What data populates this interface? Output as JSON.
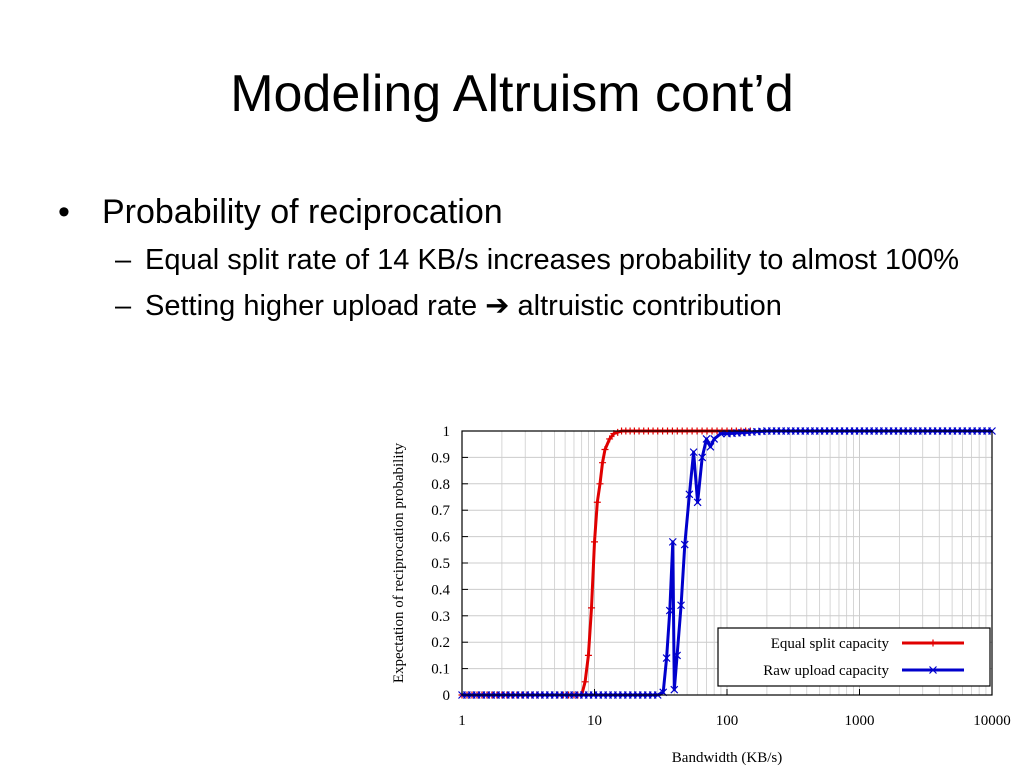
{
  "slide": {
    "title": "Modeling Altruism cont’d",
    "bullets": [
      {
        "text": "Probability of reciprocation",
        "subitems": [
          "Equal split rate of 14 KB/s increases probability to almost 100%",
          "Setting higher upload rate ➔ altruistic contribution"
        ]
      }
    ],
    "bullet_glyph": "•",
    "dash_glyph": "–"
  },
  "chart_data": {
    "type": "line",
    "title": "",
    "xlabel": "Bandwidth (KB/s)",
    "ylabel": "Expectation of reciprocation probability",
    "xscale": "log",
    "xlim": [
      1,
      10000
    ],
    "ylim": [
      0,
      1
    ],
    "x_ticks": [
      "1",
      "10",
      "100",
      "1000",
      "10000"
    ],
    "y_ticks": [
      "0",
      "0.1",
      "0.2",
      "0.3",
      "0.4",
      "0.5",
      "0.6",
      "0.7",
      "0.8",
      "0.9",
      "1"
    ],
    "grid": true,
    "legend_position": "bottom-right",
    "series": [
      {
        "name": "Equal split capacity",
        "color": "#e00000",
        "marker": "plus",
        "points": [
          [
            1,
            0
          ],
          [
            2,
            0
          ],
          [
            4,
            0
          ],
          [
            7,
            0
          ],
          [
            8,
            0
          ],
          [
            8.5,
            0.05
          ],
          [
            9,
            0.15
          ],
          [
            9.5,
            0.33
          ],
          [
            10,
            0.58
          ],
          [
            10.5,
            0.73
          ],
          [
            11,
            0.8
          ],
          [
            11.5,
            0.88
          ],
          [
            12,
            0.93
          ],
          [
            13,
            0.97
          ],
          [
            14,
            0.99
          ],
          [
            16,
            1
          ],
          [
            20,
            1
          ],
          [
            30,
            1
          ],
          [
            50,
            1
          ],
          [
            100,
            1
          ],
          [
            150,
            1
          ]
        ]
      },
      {
        "name": "Raw upload capacity",
        "color": "#0000cc",
        "marker": "x",
        "points": [
          [
            1,
            0
          ],
          [
            5,
            0
          ],
          [
            15,
            0
          ],
          [
            30,
            0
          ],
          [
            33,
            0.01
          ],
          [
            35,
            0.14
          ],
          [
            37,
            0.32
          ],
          [
            39,
            0.58
          ],
          [
            40,
            0.02
          ],
          [
            42,
            0.15
          ],
          [
            45,
            0.34
          ],
          [
            48,
            0.57
          ],
          [
            52,
            0.76
          ],
          [
            56,
            0.92
          ],
          [
            60,
            0.73
          ],
          [
            65,
            0.9
          ],
          [
            70,
            0.97
          ],
          [
            75,
            0.94
          ],
          [
            80,
            0.97
          ],
          [
            90,
            0.99
          ],
          [
            100,
            0.99
          ],
          [
            200,
            1
          ],
          [
            500,
            1
          ],
          [
            1000,
            1
          ],
          [
            3000,
            1
          ],
          [
            10000,
            1
          ]
        ]
      }
    ]
  }
}
